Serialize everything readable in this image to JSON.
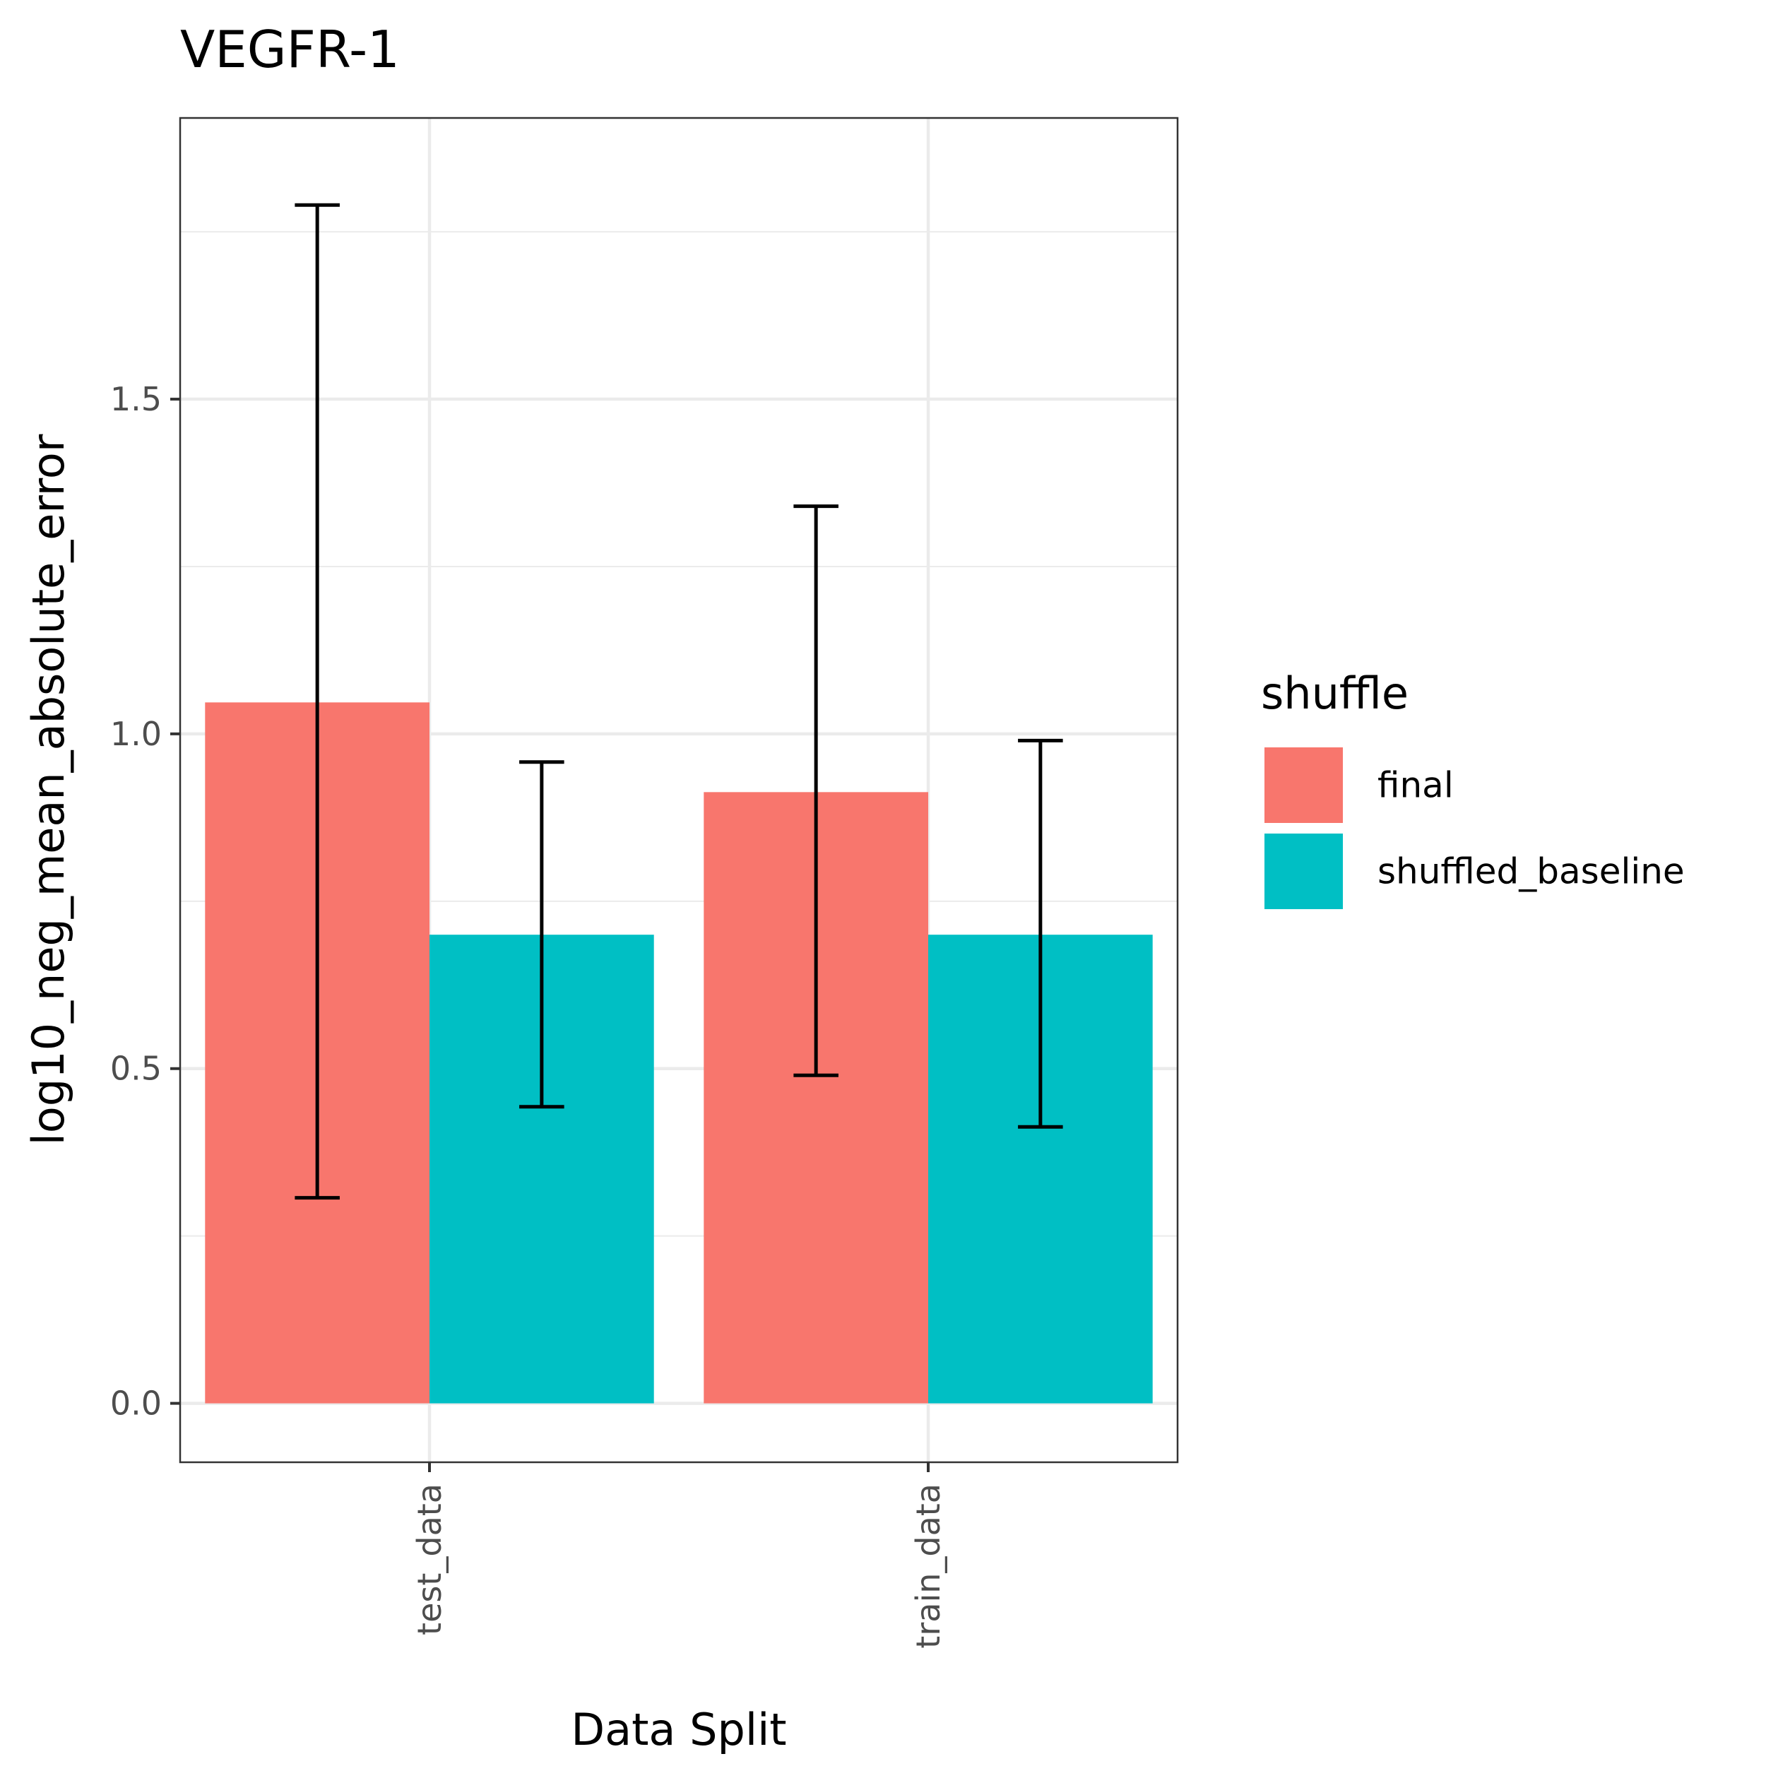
{
  "chart_data": {
    "type": "bar",
    "title": "VEGFR-1",
    "xlabel": "Data Split",
    "ylabel": "log10_neg_mean_absolute_error",
    "categories": [
      "test_data",
      "train_data"
    ],
    "series": [
      {
        "name": "final",
        "color": "#F8766D",
        "values": [
          1.047,
          0.913
        ],
        "error_low": [
          0.307,
          0.49
        ],
        "error_high": [
          1.79,
          1.34
        ]
      },
      {
        "name": "shuffled_baseline",
        "color": "#00BFC4",
        "values": [
          0.7,
          0.7
        ],
        "error_low": [
          0.443,
          0.413
        ],
        "error_high": [
          0.958,
          0.99
        ]
      }
    ],
    "ylim": [
      -0.088,
      1.92
    ],
    "yticks": [
      0.0,
      0.5,
      1.0,
      1.5
    ],
    "ytick_labels": [
      "0.0",
      "0.5",
      "1.0",
      "1.5"
    ],
    "grid": true,
    "legend": {
      "title": "shuffle",
      "position": "right",
      "entries": [
        "final",
        "shuffled_baseline"
      ]
    }
  }
}
